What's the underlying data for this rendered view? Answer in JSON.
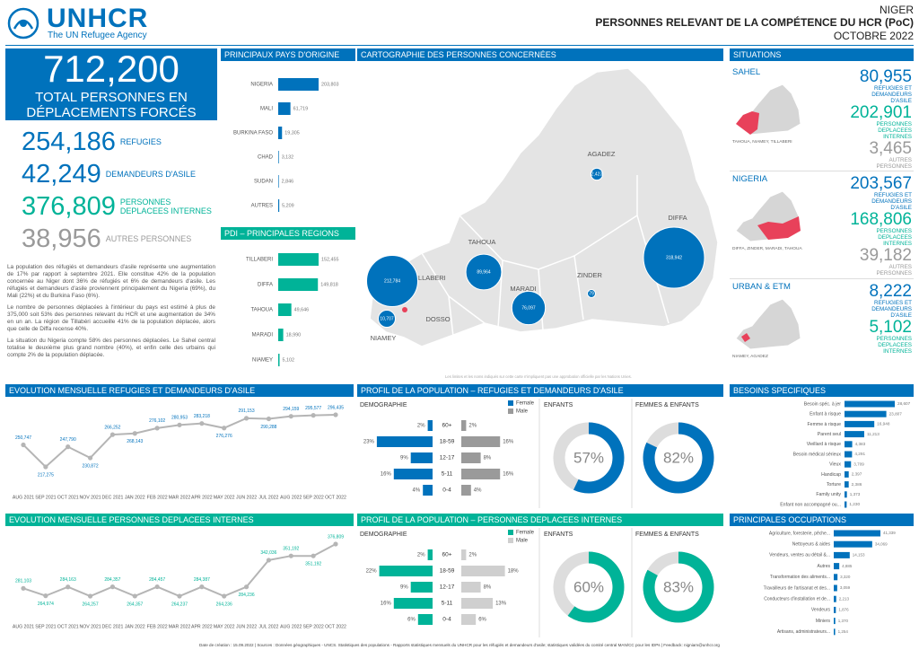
{
  "header": {
    "logo": "UNHCR",
    "tagline": "The UN Refugee Agency",
    "country": "NIGER",
    "title": "PERSONNES RELEVANT DE LA COMPÉTENCE DU HCR (PoC)",
    "date": "OCTOBRE 2022"
  },
  "summary": {
    "total": "712,200",
    "total_label": "TOTAL PERSONNES EN DÉPLACEMENTS FORCÉS",
    "stats": [
      {
        "value": "254,186",
        "label": "REFUGIES",
        "color": "#0072bc"
      },
      {
        "value": "42,249",
        "label": "DEMANDEURS D'ASILE",
        "color": "#0072bc"
      },
      {
        "value": "376,809",
        "label": "PERSONNES DEPLACEES INTERNES",
        "color": "#00b398"
      },
      {
        "value": "38,956",
        "label": "AUTRES PERSONNES",
        "color": "#9a9a9a"
      }
    ],
    "paragraphs": [
      "La population des réfugiés et demandeurs d'asile représente une augmentation de 17% par rapport à septembre 2021. Elle constitue 42% de la population concernée au Niger dont 36% de réfugiés et 6% de demandeurs d'asile. Les réfugiés et demandeurs d'asile proviennent principalement du Nigeria (69%), du Mali (22%) et du Burkina Faso (6%).",
      "Le nombre de personnes déplacées à l'intérieur du pays est estimé à plus de 375,000 soit 53% des personnes relevant du HCR et une augmentation de 34% en un an. La région de Tillabéri accueille 41% de la population déplacée, alors que celle de Diffa recense 40%.",
      "La situation du Nigeria compte 58% des personnes déplacées. Le Sahel central totalise le deuxième plus grand nombre (40%), et enfin celle des urbains qui compte 2% de la population déplacée."
    ]
  },
  "origin": {
    "title": "PRINCIPAUX PAYS D'ORIGINE",
    "type": "bar",
    "color": "#0072bc",
    "categories": [
      "NIGERIA",
      "MALI",
      "BURKINA FASO",
      "CHAD",
      "SUDAN",
      "AUTRES"
    ],
    "values": [
      203803,
      61719,
      19305,
      3132,
      2846,
      5209
    ],
    "value_labels": [
      "203,803",
      "61,719",
      "19,305",
      "3,132",
      "2,846",
      "5,209"
    ]
  },
  "regions": {
    "title": "PDI – PRINCIPALES REGIONS",
    "type": "bar",
    "color": "#00b398",
    "categories": [
      "TILLABERI",
      "DIFFA",
      "TAHOUA",
      "MARADI",
      "NIAMEY"
    ],
    "values": [
      152455,
      149818,
      49646,
      18990,
      5102
    ],
    "value_labels": [
      "152,455",
      "149,818",
      "49,646",
      "18,990",
      "5,102"
    ]
  },
  "map": {
    "title": "CARTOGRAPHIE DES PERSONNES CONCERNÉES",
    "color": "#0072bc",
    "regions": [
      "AGADEZ",
      "DIFFA",
      "TAHOUA",
      "ZINDER",
      "MARADI",
      "TILLABERI",
      "NIAMEY",
      "DOSSO"
    ],
    "values": [
      2423,
      318942,
      89964,
      79,
      76097,
      212784,
      10707,
      null
    ],
    "value_labels": [
      "2,423",
      "318,942",
      "89,964",
      "79",
      "76,097",
      "212,784",
      "10,707",
      null
    ],
    "note": "Les limites et les noms indiqués sur cette carte n'impliquent pas une approbation officielle par les Nations Unies."
  },
  "situations": {
    "title": "SITUATIONS",
    "panels": [
      {
        "name": "SAHEL",
        "caption": "TAHOUA, NIAMEY, TILLABERI",
        "stats": [
          {
            "value": "80,955",
            "label": "REFUGIES ET DEMANDEURS D'ASILE",
            "color": "#0072bc"
          },
          {
            "value": "202,901",
            "label": "PERSONNES DEPLACEES INTERNES",
            "color": "#00b398"
          },
          {
            "value": "3,465",
            "label": "AUTRES PERSONNES",
            "color": "#9a9a9a"
          }
        ]
      },
      {
        "name": "NIGERIA",
        "caption": "DIFFA, ZINDER, MARADI, TAHOUA",
        "stats": [
          {
            "value": "203,567",
            "label": "REFUGIES ET DEMANDEURS D'ASILE",
            "color": "#0072bc"
          },
          {
            "value": "168,806",
            "label": "PERSONNES DEPLACEES INTERNES",
            "color": "#00b398"
          },
          {
            "value": "39,182",
            "label": "AUTRES PERSONNES",
            "color": "#9a9a9a"
          }
        ]
      },
      {
        "name": "URBAN & ETM",
        "caption": "NIAMEY, AGADEZ",
        "stats": [
          {
            "value": "8,222",
            "label": "REFUGIES ET DEMANDEURS D'ASILE",
            "color": "#0072bc"
          },
          {
            "value": "5,102",
            "label": "PERSONNES DEPLACEES INTERNES",
            "color": "#00b398"
          }
        ]
      }
    ]
  },
  "refugee_trend": {
    "title": "EVOLUTION MENSUELLE REFUGIES ET DEMANDEURS D'ASILE",
    "type": "line",
    "color": "#0072bc",
    "line_color": "#b5b5b5",
    "categories": [
      "AUG 2021",
      "SEP 2021",
      "OCT 2021",
      "NOV 2021",
      "DEC 2021",
      "JAN 2022",
      "FEB 2022",
      "MAR 2022",
      "APR 2022",
      "MAY 2022",
      "JUN 2022",
      "JUL 2022",
      "AUG 2022",
      "SEP 2022",
      "OCT 2022"
    ],
    "values": [
      250747,
      217275,
      247790,
      230872,
      266252,
      268143,
      276102,
      280953,
      283218,
      276276,
      291153,
      290288,
      294159,
      295577,
      296435
    ],
    "value_labels": [
      "250,747",
      "217,275",
      "247,790",
      "230,872",
      "266,252",
      "268,143",
      "276,102",
      "280,953",
      "283,218",
      "276,276",
      "291,153",
      "290,288",
      "294,159",
      "295,577",
      "296,435"
    ]
  },
  "idp_trend": {
    "title": "EVOLUTION MENSUELLE PERSONNES DEPLACEES INTERNES",
    "type": "line",
    "color": "#00b398",
    "line_color": "#b5b5b5",
    "categories": [
      "AUG 2021",
      "SEP 2021",
      "OCT 2021",
      "NOV 2021",
      "DEC 2021",
      "JAN 2022",
      "FEB 2022",
      "MAR 2022",
      "APR 2022",
      "MAY 2022",
      "JUN 2022",
      "JUL 2022",
      "AUG 2022",
      "SEP 2022",
      "OCT 2022"
    ],
    "values": [
      281103,
      264974,
      284163,
      264257,
      284357,
      264357,
      284457,
      264237,
      284387,
      264236,
      284236,
      342036,
      351192,
      351192,
      376809
    ],
    "value_labels": [
      "281,103",
      "264,974",
      "284,163",
      "264,257",
      "284,357",
      "264,357",
      "284,457",
      "264,237",
      "284,387",
      "264,236",
      "284,236",
      "342,036",
      "351,192",
      "351,192",
      "376,809"
    ]
  },
  "refugee_profile": {
    "title": "PROFIL DE LA POPULATION – REFUGIES ET DEMANDEURS D'ASILE",
    "type": "pyramid",
    "color": "#0072bc",
    "demo_title": "DEMOGRAPHIE",
    "categories": [
      "60+",
      "18-59",
      "12-17",
      "5-11",
      "0-4"
    ],
    "series": [
      {
        "name": "Female",
        "color": "#0072bc",
        "values": [
          2,
          23,
          9,
          16,
          4
        ],
        "value_labels": [
          "2%",
          "23%",
          "9%",
          "16%",
          "4%"
        ]
      },
      {
        "name": "Male",
        "color": "#9a9a9a",
        "values": [
          2,
          16,
          8,
          16,
          4
        ],
        "value_labels": [
          "2%",
          "16%",
          "8%",
          "16%",
          "4%"
        ]
      }
    ],
    "donuts": [
      {
        "title": "ENFANTS",
        "value": 57,
        "value_label": "57%",
        "color": "#0072bc"
      },
      {
        "title": "FEMMES & ENFANTS",
        "value": 82,
        "value_label": "82%",
        "color": "#0072bc"
      }
    ]
  },
  "idp_profile": {
    "title": "PROFIL DE LA POPULATION – PERSONNES DEPLACEES INTERNES",
    "type": "pyramid",
    "color": "#00b398",
    "demo_title": "DEMOGRAPHIE",
    "categories": [
      "60+",
      "18-59",
      "12-17",
      "5-11",
      "0-4"
    ],
    "series": [
      {
        "name": "Female",
        "color": "#00b398",
        "values": [
          2,
          22,
          9,
          16,
          6
        ],
        "value_labels": [
          "2%",
          "22%",
          "9%",
          "16%",
          "6%"
        ]
      },
      {
        "name": "Male",
        "color": "#cfcfcf",
        "values": [
          2,
          18,
          8,
          13,
          6
        ],
        "value_labels": [
          "2%",
          "18%",
          "8%",
          "13%",
          "6%"
        ]
      }
    ],
    "donuts": [
      {
        "title": "ENFANTS",
        "value": 60,
        "value_label": "60%",
        "color": "#00b398"
      },
      {
        "title": "FEMMES & ENFANTS",
        "value": 83,
        "value_label": "83%",
        "color": "#00b398"
      }
    ]
  },
  "needs": {
    "title": "BESOINS SPECIFIQUES",
    "type": "bar",
    "color": "#0072bc",
    "categories": [
      "Besoin spéc. à jer",
      "Enfant à risque",
      "Femme à risque",
      "Parent seul",
      "Vieillard à risque",
      "Besoin médical sérieux",
      "Vieux",
      "Handicap",
      "Torture",
      "Family unity",
      "Enfant non accompagné ou..."
    ],
    "values": [
      28607,
      23807,
      16948,
      11213,
      4383,
      4291,
      3709,
      2397,
      2386,
      1373,
      1230
    ],
    "value_labels": [
      "28,607",
      "23,807",
      "16,948",
      "11,213",
      "4,383",
      "4,291",
      "3,709",
      "2,397",
      "2,386",
      "1,373",
      "1,230"
    ]
  },
  "occupations": {
    "title": "PRINCIPALES OCCUPATIONS",
    "type": "bar",
    "color": "#0072bc",
    "categories": [
      "Agriculture, foresterie, pêche...",
      "Nettoyeurs & aides",
      "Vendeurs, ventes au détail &...",
      "Autres",
      "Transformation des aliments...",
      "Travailleurs de l'artisanat et des...",
      "Conducteurs d'installation et de...",
      "Vendeurs",
      "Miniers",
      "Artisans, administrateurs..."
    ],
    "values": [
      41339,
      34069,
      14153,
      4885,
      3320,
      3059,
      2213,
      1876,
      1370,
      1254
    ],
    "value_labels": [
      "41,339",
      "34,069",
      "14,153",
      "4,885",
      "3,320",
      "3,059",
      "2,213",
      "1,876",
      "1,370",
      "1,254"
    ]
  },
  "footer": "Date de création : 15.09.2022 | Sources : Données géographiques - UNCS. Statistiques des populations - Rapports statistiques mensuels du UNHCR pour les réfugiés et demandeurs d'asile; statistiques validées du comité central MAN/CC pour les IDPs | Feedback: nigniam@unhcr.org"
}
